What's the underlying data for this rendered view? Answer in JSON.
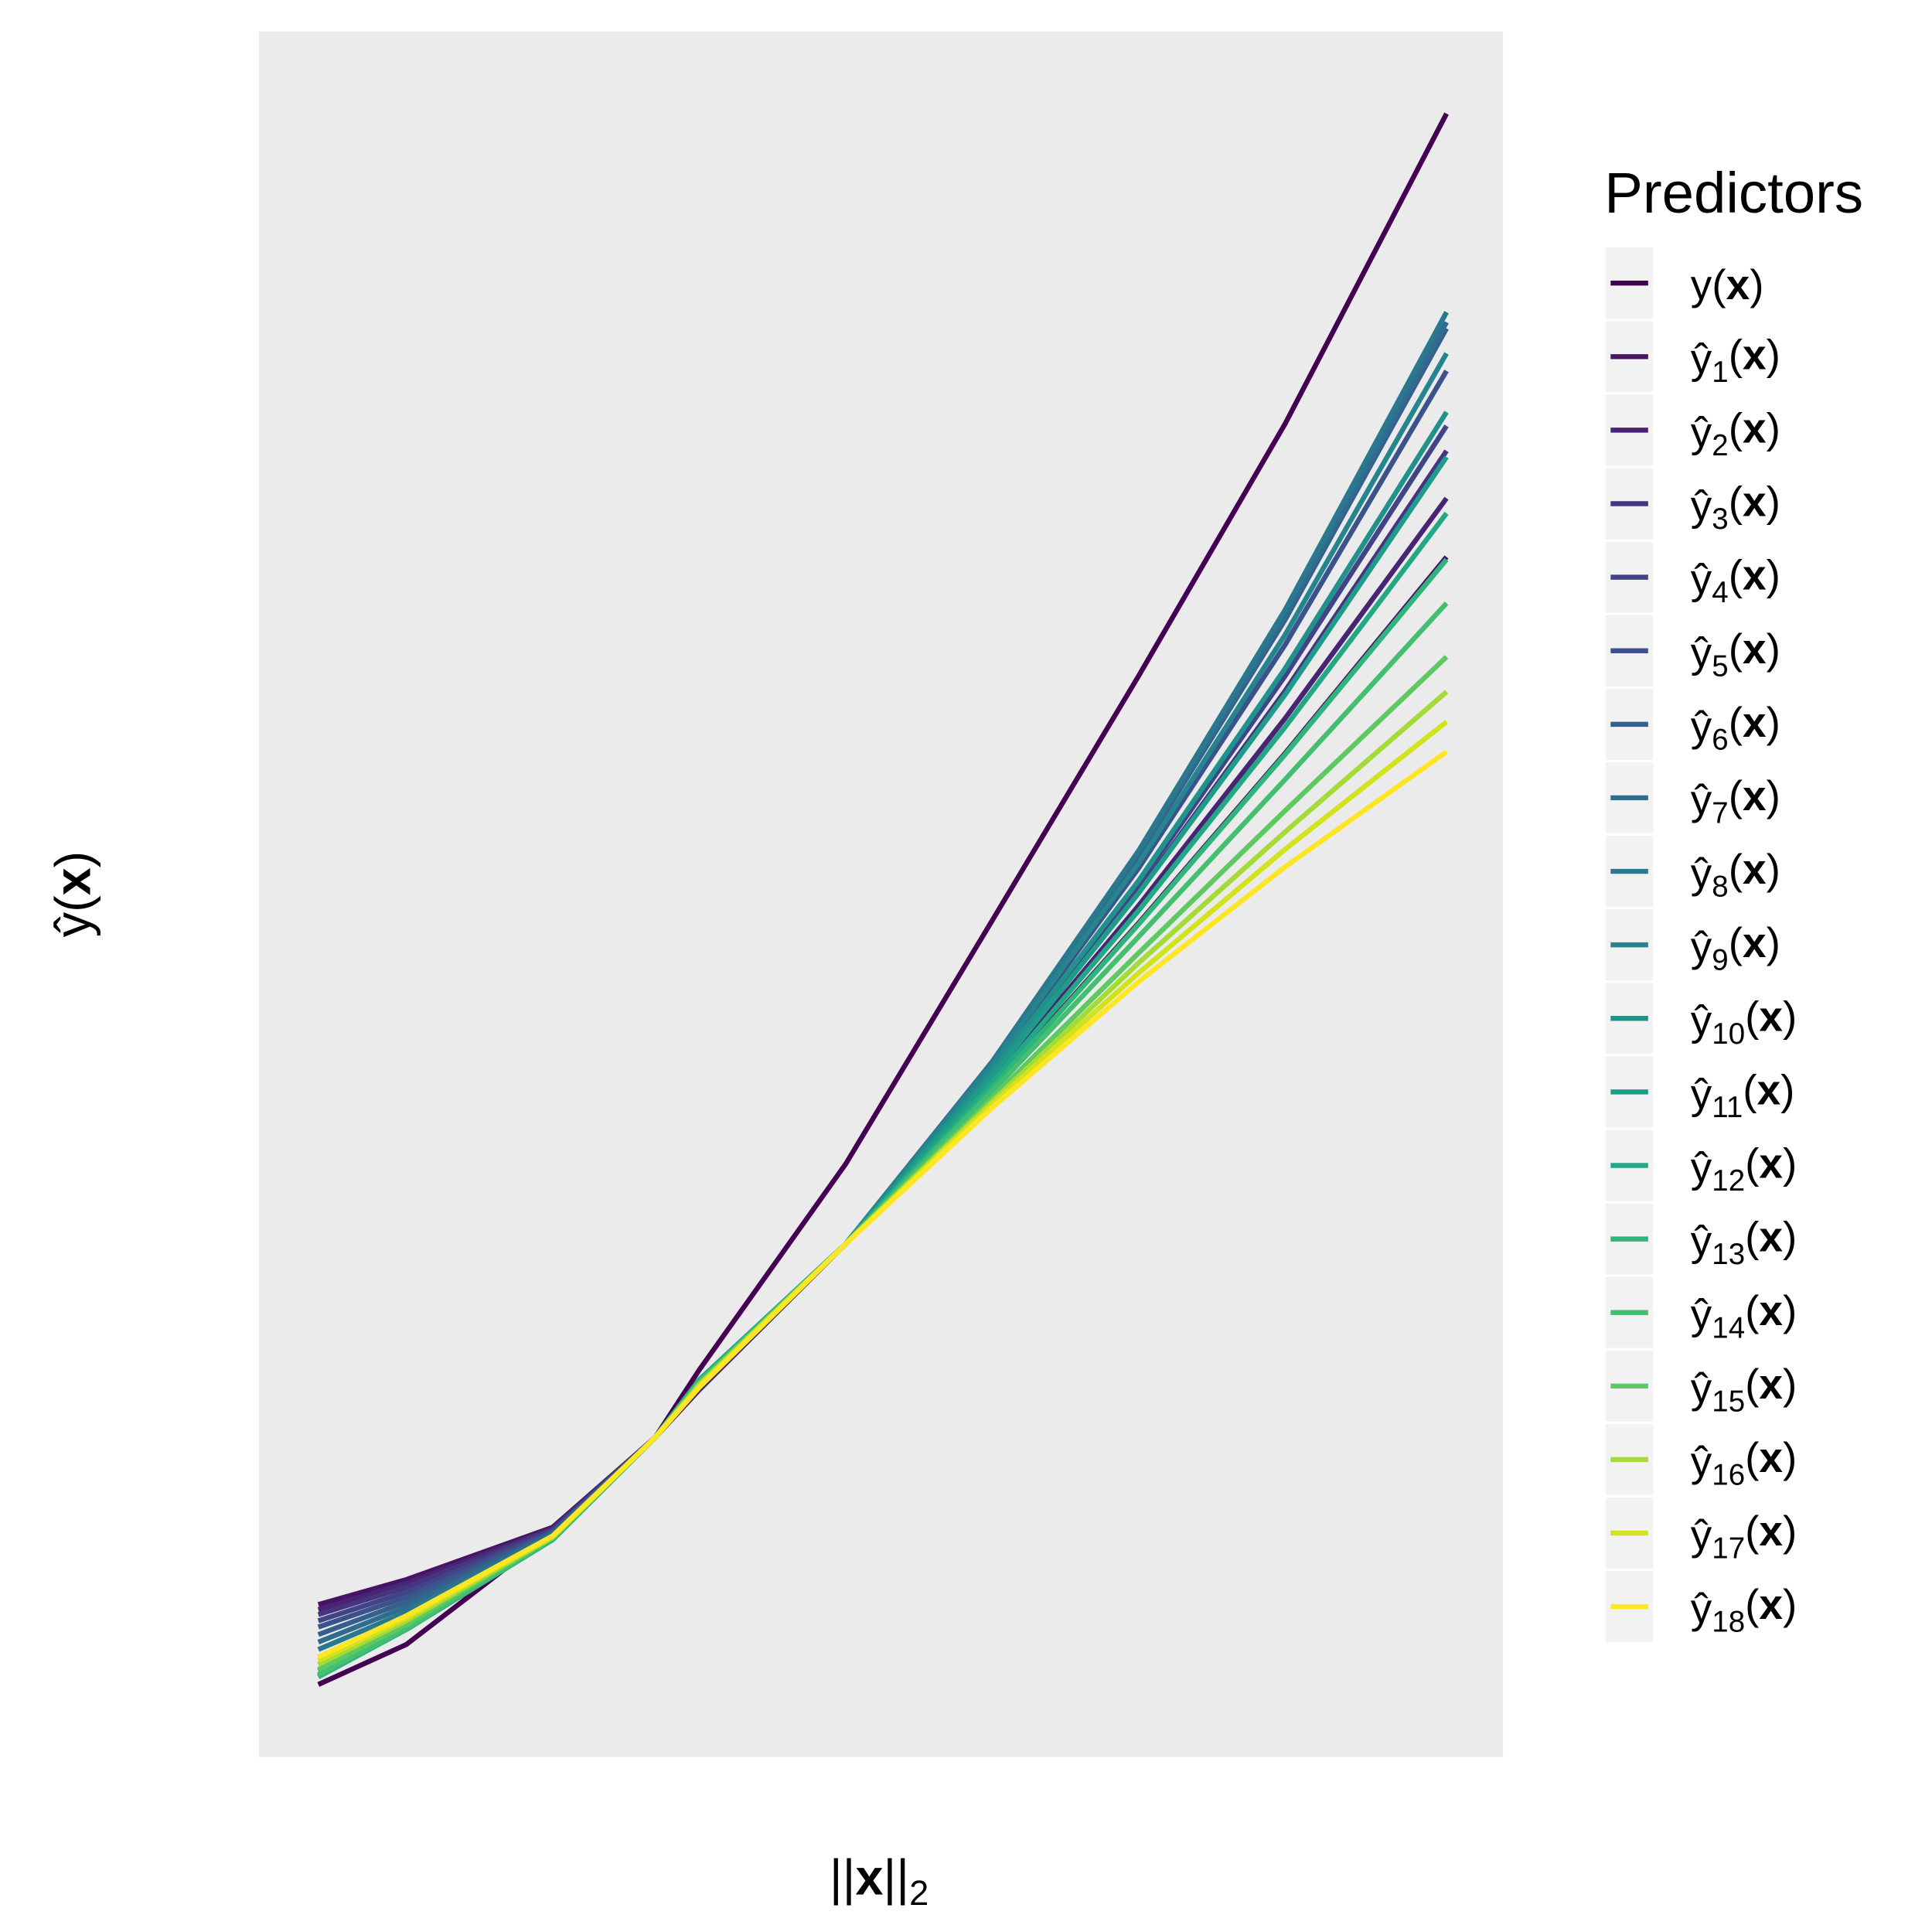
{
  "chart_data": {
    "type": "line",
    "x_label": "||x||2",
    "y_label": "ŷ(x)",
    "legend_title": "Predictors",
    "legend": "right",
    "grid": true,
    "xlim": [
      -0.3,
      424.3
    ],
    "ylim": [
      94.4,
      232.6
    ],
    "xticks": [
      0,
      100,
      200,
      300,
      400
    ],
    "yticks": [
      120,
      160,
      200
    ],
    "minor_xticks": [
      50,
      150,
      250,
      350
    ],
    "minor_yticks": [
      100,
      140,
      180,
      220
    ],
    "x": [
      20,
      50,
      100,
      135,
      150,
      200,
      250,
      300,
      350,
      405
    ],
    "series": [
      {
        "name": "y(x)",
        "color": "#440154",
        "values": [
          100.2,
          103.4,
          112.4,
          120,
          125.4,
          141.9,
          161.4,
          181.0,
          201.2,
          226.0
        ]
      },
      {
        "name": "ŷ1(x)",
        "color": "#471365",
        "values": [
          106.6,
          108.6,
          112.8,
          120,
          123.8,
          135.5,
          148.1,
          161.2,
          174.8,
          190.5
        ]
      },
      {
        "name": "ŷ2(x)",
        "color": "#482475",
        "values": [
          106.2,
          108.3,
          112.7,
          120,
          123.9,
          135.5,
          148.6,
          162.6,
          177.6,
          195.2
        ]
      },
      {
        "name": "ŷ3(x)",
        "color": "#463480",
        "values": [
          105.8,
          108.0,
          112.6,
          120,
          124.0,
          135.5,
          149.0,
          163.7,
          179.8,
          199.0
        ]
      },
      {
        "name": "ŷ4(x)",
        "color": "#414487",
        "values": [
          105.3,
          107.6,
          112.5,
          120,
          124.1,
          135.5,
          149.1,
          164.3,
          181.0,
          201.0
        ]
      },
      {
        "name": "ŷ5(x)",
        "color": "#3b528b",
        "values": [
          104.8,
          107.2,
          112.4,
          120,
          124.2,
          135.5,
          149.6,
          165.6,
          183.5,
          205.4
        ]
      },
      {
        "name": "ŷ6(x)",
        "color": "#355f8d",
        "values": [
          104.2,
          106.8,
          112.3,
          120,
          124.3,
          135.5,
          150.0,
          166.6,
          185.5,
          208.8
        ]
      },
      {
        "name": "ŷ7(x)",
        "color": "#2f6c8e",
        "values": [
          103.6,
          106.4,
          112.2,
          120,
          124.4,
          135.5,
          150.0,
          166.8,
          185.8,
          209.3
        ]
      },
      {
        "name": "ŷ8(x)",
        "color": "#2a788e",
        "values": [
          103.0,
          106.0,
          112.1,
          120,
          124.5,
          135.5,
          150.1,
          167.0,
          186.3,
          210.1
        ]
      },
      {
        "name": "ŷ9(x)",
        "color": "#25848e",
        "values": [
          102.4,
          105.6,
          112.0,
          120,
          124.5,
          135.5,
          149.8,
          166.0,
          184.3,
          206.8
        ]
      },
      {
        "name": "ŷ10(x)",
        "color": "#21918c",
        "values": [
          101.8,
          105.2,
          111.9,
          120,
          124.6,
          135.5,
          149.3,
          164.6,
          181.6,
          202.1
        ]
      },
      {
        "name": "ŷ11(x)",
        "color": "#1e9c89",
        "values": [
          101.3,
          104.9,
          111.8,
          120,
          124.6,
          135.5,
          148.9,
          163.6,
          179.5,
          198.5
        ]
      },
      {
        "name": "ŷ12(x)",
        "color": "#22a884",
        "values": [
          100.9,
          104.6,
          111.8,
          120,
          124.6,
          135.5,
          148.4,
          162.2,
          176.9,
          194.0
        ]
      },
      {
        "name": "ŷ13(x)",
        "color": "#2fb47c",
        "values": [
          100.8,
          104.6,
          111.8,
          120,
          124.5,
          135.5,
          148.0,
          161.1,
          174.7,
          190.3
        ]
      },
      {
        "name": "ŷ14(x)",
        "color": "#44bf70",
        "values": [
          101.0,
          104.7,
          111.9,
          120,
          124.4,
          135.5,
          147.7,
          160.1,
          172.7,
          186.8
        ]
      },
      {
        "name": "ŷ15(x)",
        "color": "#5ec962",
        "values": [
          101.4,
          105.0,
          112.0,
          120,
          124.3,
          135.5,
          147.2,
          158.8,
          170.2,
          182.5
        ]
      },
      {
        "name": "ŷ16(x)",
        "color": "#a5db36",
        "values": [
          101.8,
          105.3,
          112.0,
          120,
          124.2,
          135.5,
          146.9,
          158.0,
          168.5,
          179.7
        ]
      },
      {
        "name": "ŷ17(x)",
        "color": "#d2e21b",
        "values": [
          102.1,
          105.5,
          112.1,
          120,
          124.1,
          135.5,
          146.7,
          157.2,
          167.1,
          177.3
        ]
      },
      {
        "name": "ŷ18(x)",
        "color": "#fde725",
        "values": [
          102.4,
          105.7,
          112.1,
          120,
          124.0,
          135.5,
          146.4,
          156.5,
          165.7,
          174.9
        ]
      }
    ]
  }
}
